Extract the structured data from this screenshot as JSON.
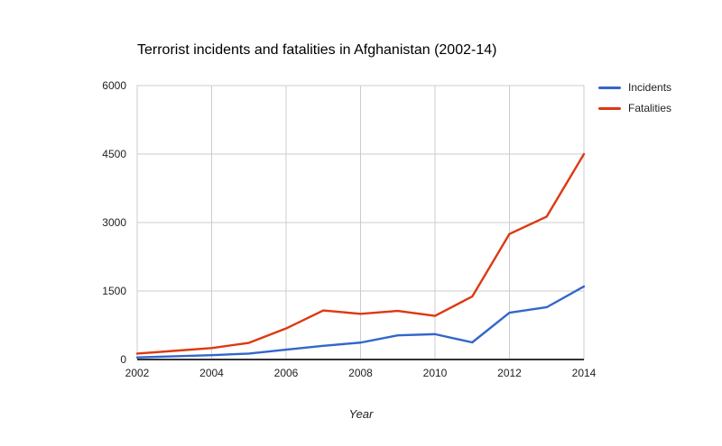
{
  "chart_data": {
    "type": "line",
    "title": "Terrorist incidents and fatalities in Afghanistan (2002-14)",
    "xlabel": "Year",
    "ylabel": "",
    "x": [
      2002,
      2003,
      2004,
      2005,
      2006,
      2007,
      2008,
      2009,
      2010,
      2011,
      2012,
      2013,
      2014
    ],
    "series": [
      {
        "name": "Incidents",
        "color": "#3366cc",
        "values": [
          45,
          70,
          95,
          130,
          215,
          300,
          370,
          530,
          555,
          375,
          1025,
          1145,
          1600
        ]
      },
      {
        "name": "Fatalities",
        "color": "#dc3912",
        "values": [
          130,
          190,
          250,
          365,
          680,
          1075,
          1000,
          1065,
          955,
          1380,
          2750,
          3130,
          4500
        ]
      }
    ],
    "xlim": [
      2002,
      2014
    ],
    "ylim": [
      0,
      6000
    ],
    "xticks": [
      2002,
      2004,
      2006,
      2008,
      2010,
      2012,
      2014
    ],
    "yticks": [
      0,
      1500,
      3000,
      4500,
      6000
    ],
    "grid": true,
    "legend_position": "top-right"
  },
  "colors": {
    "grid": "#cccccc",
    "plot_border": "#cccccc",
    "axis_line": "#333333",
    "tick_text": "#222222",
    "background": "#ffffff"
  }
}
